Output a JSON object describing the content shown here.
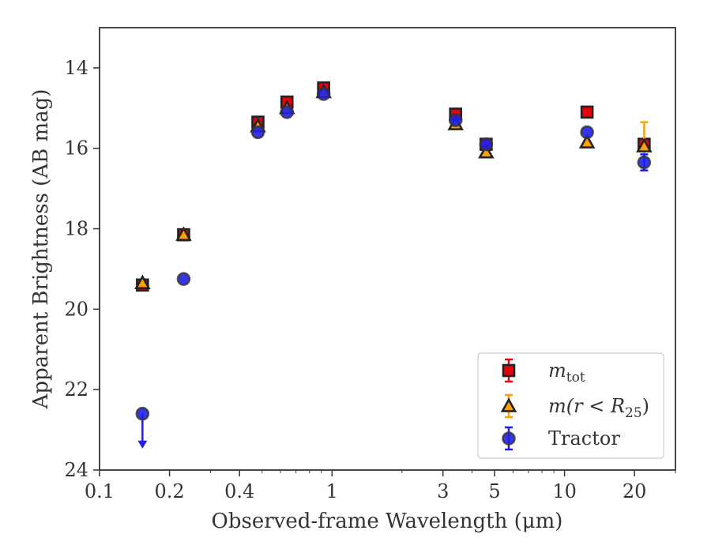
{
  "chart_data": {
    "type": "scatter",
    "xlabel": "Observed-frame Wavelength (μm)",
    "ylabel": "Apparent Brightness (AB mag)",
    "xscale": "log",
    "xlim": [
      0.1,
      30
    ],
    "ylim": [
      24,
      13
    ],
    "y_inverted": true,
    "x_ticks": [
      0.1,
      0.2,
      0.4,
      1,
      3,
      5,
      10,
      20
    ],
    "x_tick_labels": [
      "0.1",
      "0.2",
      "0.4",
      "1",
      "3",
      "5",
      "10",
      "20"
    ],
    "y_ticks": [
      14,
      16,
      18,
      20,
      22,
      24
    ],
    "y_tick_labels": [
      "14",
      "16",
      "18",
      "20",
      "22",
      "24"
    ],
    "grid": false,
    "legend_position": "lower-right",
    "series": [
      {
        "name": "m_tot",
        "marker": "square",
        "color": "#e8000b",
        "edgecolor": "#222222",
        "points": [
          {
            "x": 0.153,
            "y": 19.4
          },
          {
            "x": 0.23,
            "y": 18.15
          },
          {
            "x": 0.48,
            "y": 15.35
          },
          {
            "x": 0.64,
            "y": 14.85
          },
          {
            "x": 0.92,
            "y": 14.5
          },
          {
            "x": 3.4,
            "y": 15.15
          },
          {
            "x": 4.6,
            "y": 15.9
          },
          {
            "x": 12.5,
            "y": 15.1
          },
          {
            "x": 22.0,
            "y": 15.9
          }
        ]
      },
      {
        "name": "m(r<R25)",
        "marker": "triangle",
        "color": "#ff9f00",
        "edgecolor": "#222222",
        "points": [
          {
            "x": 0.153,
            "y": 19.35
          },
          {
            "x": 0.23,
            "y": 18.15
          },
          {
            "x": 0.48,
            "y": 15.45
          },
          {
            "x": 0.64,
            "y": 15.0
          },
          {
            "x": 0.92,
            "y": 14.6
          },
          {
            "x": 3.4,
            "y": 15.4
          },
          {
            "x": 4.6,
            "y": 16.1
          },
          {
            "x": 12.5,
            "y": 15.85
          },
          {
            "x": 22.0,
            "y": 15.95,
            "yerr": [
              0.6,
              0.6
            ]
          }
        ]
      },
      {
        "name": "Tractor",
        "marker": "circle",
        "color": "#1f1fe8",
        "edgecolor": "#333333",
        "points": [
          {
            "x": 0.153,
            "y": 22.6,
            "upper_limit": true
          },
          {
            "x": 0.23,
            "y": 19.25
          },
          {
            "x": 0.48,
            "y": 15.6
          },
          {
            "x": 0.64,
            "y": 15.1
          },
          {
            "x": 0.92,
            "y": 14.65
          },
          {
            "x": 3.4,
            "y": 15.3
          },
          {
            "x": 4.6,
            "y": 15.9
          },
          {
            "x": 12.5,
            "y": 15.6
          },
          {
            "x": 22.0,
            "y": 16.35,
            "yerr": [
              0.2,
              0.2
            ]
          }
        ]
      }
    ],
    "legend": [
      {
        "label_main": "m",
        "label_sub": "tot",
        "label_rest": "",
        "marker": "square"
      },
      {
        "label_main": "m(r < R",
        "label_sub": "25",
        "label_rest": ")",
        "marker": "triangle"
      },
      {
        "label_main": "Tractor",
        "label_sub": "",
        "label_rest": "",
        "marker": "circle"
      }
    ]
  }
}
